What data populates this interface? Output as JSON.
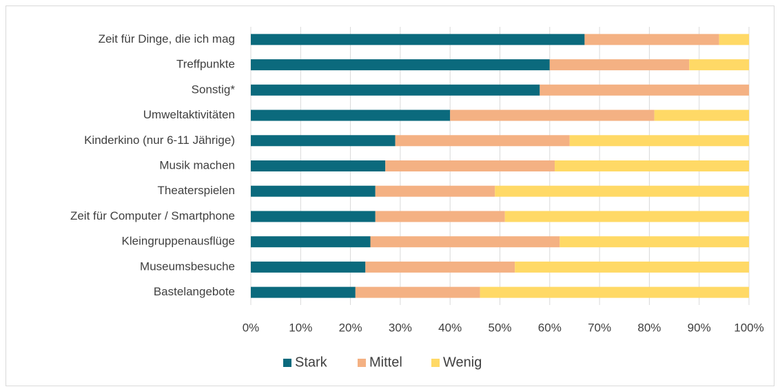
{
  "chart_data": {
    "type": "bar",
    "orientation": "horizontal",
    "stacked": true,
    "categories": [
      "Zeit für Dinge, die ich mag",
      "Treffpunkte",
      "Sonstig*",
      "Umweltaktivitäten",
      "Kinderkino (nur 6-11 Jährige)",
      "Musik machen",
      "Theaterspielen",
      "Zeit für Computer / Smartphone",
      "Kleingruppenausflüge",
      "Museumsbesuche",
      "Bastelangebote"
    ],
    "series": [
      {
        "name": "Stark",
        "color": "#0b6a7d",
        "values": [
          67,
          60,
          58,
          40,
          29,
          27,
          25,
          25,
          24,
          23,
          21
        ]
      },
      {
        "name": "Mittel",
        "color": "#f4b183",
        "values": [
          27,
          28,
          42,
          41,
          35,
          34,
          24,
          26,
          38,
          30,
          25
        ]
      },
      {
        "name": "Wenig",
        "color": "#ffd966",
        "values": [
          6,
          12,
          0,
          19,
          36,
          39,
          51,
          49,
          38,
          47,
          54
        ]
      }
    ],
    "xlim": [
      0,
      100
    ],
    "xticks": [
      {
        "value": 0,
        "label": "0%"
      },
      {
        "value": 10,
        "label": "10%"
      },
      {
        "value": 20,
        "label": "20%"
      },
      {
        "value": 30,
        "label": "30%"
      },
      {
        "value": 40,
        "label": "40%"
      },
      {
        "value": 50,
        "label": "50%"
      },
      {
        "value": 60,
        "label": "60%"
      },
      {
        "value": 70,
        "label": "70%"
      },
      {
        "value": 80,
        "label": "80%"
      },
      {
        "value": 90,
        "label": "90%"
      },
      {
        "value": 100,
        "label": "100%"
      }
    ],
    "grid": true,
    "legend": "bottom"
  }
}
